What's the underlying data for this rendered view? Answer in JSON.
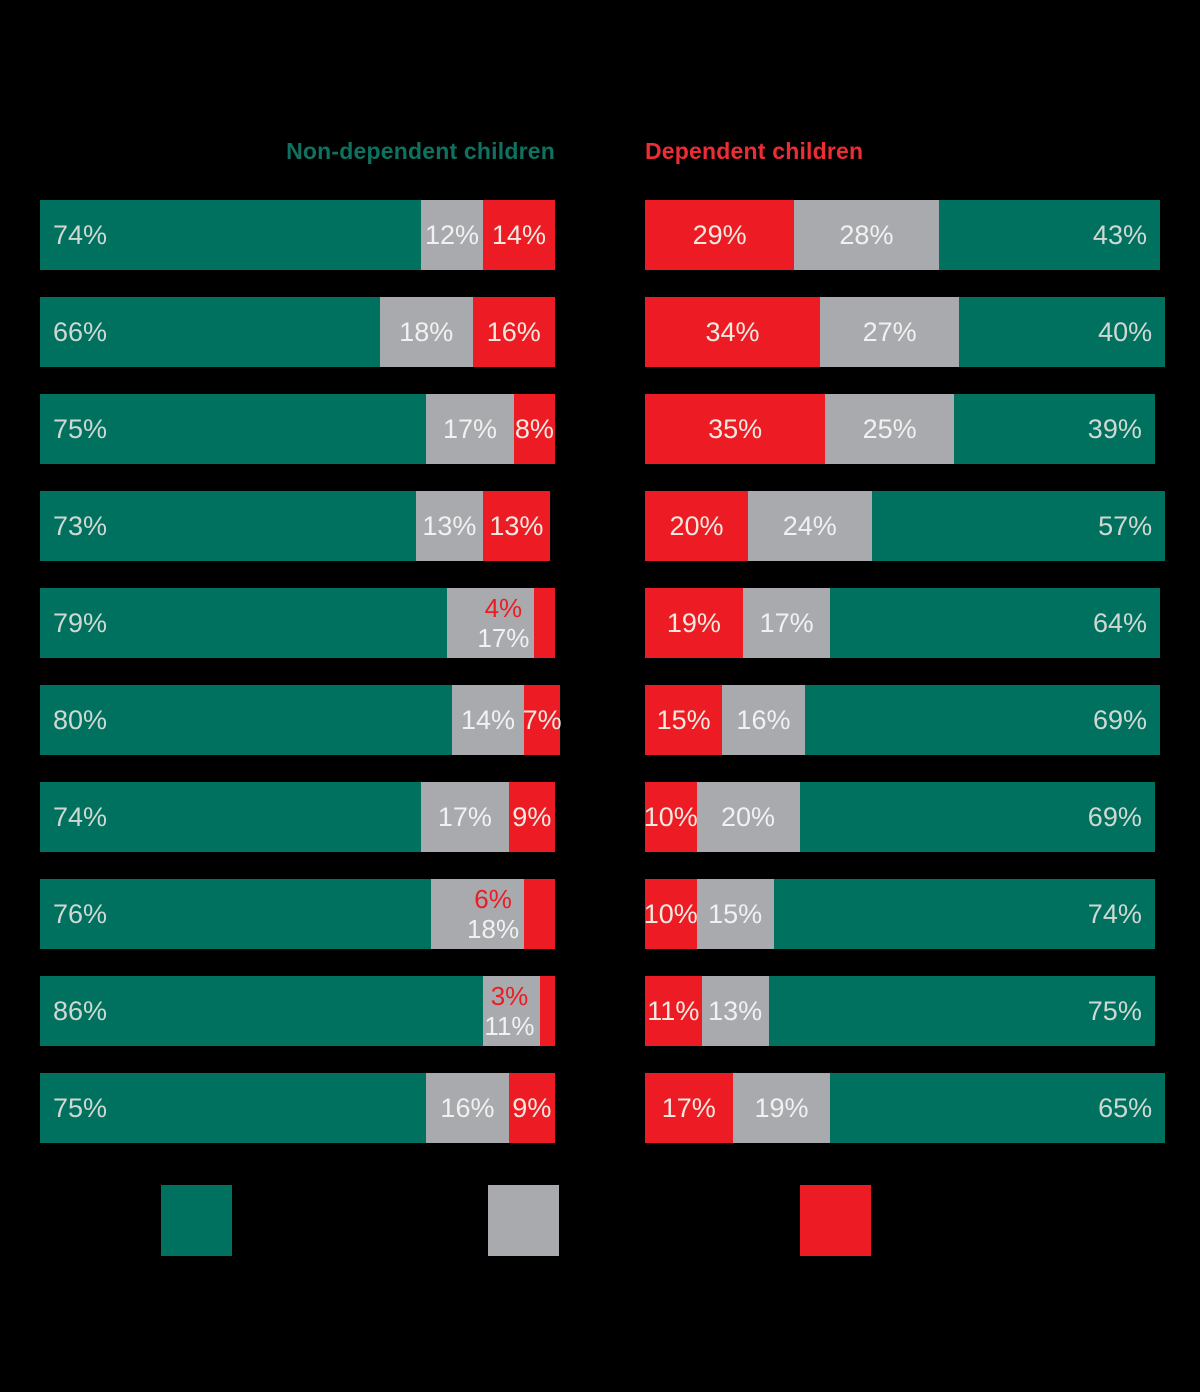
{
  "colors": {
    "background": "#000000",
    "green": "#00715e",
    "gray": "#a8aaad",
    "red": "#ed1c24",
    "header_green": "#0f7260",
    "header_red": "#ed2d35",
    "label_on_green": "#d0d8d3",
    "label_on_gray": "#f0f1f1",
    "label_on_red": "#f2e9e1"
  },
  "headers": {
    "left": "Non-dependent children",
    "right": "Dependent children"
  },
  "chart_data": {
    "type": "bar",
    "variant": "horizontal-stacked-percentage",
    "legend_position": "bottom",
    "legend_swatch_colors": [
      "#00715e",
      "#a8aaad",
      "#ed1c24"
    ],
    "groups": [
      {
        "title": "Non-dependent children",
        "segment_order": [
          "green",
          "gray",
          "red"
        ],
        "rows": [
          {
            "segments": [
              {
                "color": "green",
                "value": 74,
                "label": "74%",
                "align": "left"
              },
              {
                "color": "gray",
                "value": 12,
                "label": "12%",
                "align": "center"
              },
              {
                "color": "red",
                "value": 14,
                "label": "14%",
                "align": "center"
              }
            ]
          },
          {
            "segments": [
              {
                "color": "green",
                "value": 66,
                "label": "66%",
                "align": "left"
              },
              {
                "color": "gray",
                "value": 18,
                "label": "18%",
                "align": "center"
              },
              {
                "color": "red",
                "value": 16,
                "label": "16%",
                "align": "center"
              }
            ]
          },
          {
            "segments": [
              {
                "color": "green",
                "value": 75,
                "label": "75%",
                "align": "left"
              },
              {
                "color": "gray",
                "value": 17,
                "label": "17%",
                "align": "center"
              },
              {
                "color": "red",
                "value": 8,
                "label": "8%",
                "align": "center"
              }
            ]
          },
          {
            "segments": [
              {
                "color": "green",
                "value": 73,
                "label": "73%",
                "align": "left"
              },
              {
                "color": "gray",
                "value": 13,
                "label": "13%",
                "align": "center"
              },
              {
                "color": "red",
                "value": 13,
                "label": "13%",
                "align": "center"
              }
            ]
          },
          {
            "segments": [
              {
                "color": "green",
                "value": 79,
                "label": "79%",
                "align": "left"
              },
              {
                "color": "gray",
                "value": 17,
                "label": "",
                "align": "center",
                "stack": {
                  "top": "4%",
                  "bottom": "17%"
                }
              },
              {
                "color": "red",
                "value": 4,
                "label": "",
                "align": "center"
              }
            ]
          },
          {
            "segments": [
              {
                "color": "green",
                "value": 80,
                "label": "80%",
                "align": "left"
              },
              {
                "color": "gray",
                "value": 14,
                "label": "14%",
                "align": "center"
              },
              {
                "color": "red",
                "value": 7,
                "label": "7%",
                "align": "center"
              }
            ]
          },
          {
            "segments": [
              {
                "color": "green",
                "value": 74,
                "label": "74%",
                "align": "left"
              },
              {
                "color": "gray",
                "value": 17,
                "label": "17%",
                "align": "center"
              },
              {
                "color": "red",
                "value": 9,
                "label": "9%",
                "align": "center"
              }
            ]
          },
          {
            "segments": [
              {
                "color": "green",
                "value": 76,
                "label": "76%",
                "align": "left"
              },
              {
                "color": "gray",
                "value": 18,
                "label": "",
                "align": "center",
                "stack": {
                  "top": "6%",
                  "bottom": "18%"
                }
              },
              {
                "color": "red",
                "value": 6,
                "label": "",
                "align": "center"
              }
            ]
          },
          {
            "segments": [
              {
                "color": "green",
                "value": 86,
                "label": "86%",
                "align": "left"
              },
              {
                "color": "gray",
                "value": 11,
                "label": "",
                "align": "center",
                "stack": {
                  "top": "3%",
                  "bottom": "11%"
                }
              },
              {
                "color": "red",
                "value": 3,
                "label": "",
                "align": "center"
              }
            ]
          },
          {
            "segments": [
              {
                "color": "green",
                "value": 75,
                "label": "75%",
                "align": "left"
              },
              {
                "color": "gray",
                "value": 16,
                "label": "16%",
                "align": "center"
              },
              {
                "color": "red",
                "value": 9,
                "label": "9%",
                "align": "center"
              }
            ]
          }
        ]
      },
      {
        "title": "Dependent children",
        "segment_order": [
          "red",
          "gray",
          "green"
        ],
        "rows": [
          {
            "segments": [
              {
                "color": "red",
                "value": 29,
                "label": "29%",
                "align": "center"
              },
              {
                "color": "gray",
                "value": 28,
                "label": "28%",
                "align": "center"
              },
              {
                "color": "green",
                "value": 43,
                "label": "43%",
                "align": "right"
              }
            ]
          },
          {
            "segments": [
              {
                "color": "red",
                "value": 34,
                "label": "34%",
                "align": "center"
              },
              {
                "color": "gray",
                "value": 27,
                "label": "27%",
                "align": "center"
              },
              {
                "color": "green",
                "value": 40,
                "label": "40%",
                "align": "right"
              }
            ]
          },
          {
            "segments": [
              {
                "color": "red",
                "value": 35,
                "label": "35%",
                "align": "center"
              },
              {
                "color": "gray",
                "value": 25,
                "label": "25%",
                "align": "center"
              },
              {
                "color": "green",
                "value": 39,
                "label": "39%",
                "align": "right"
              }
            ]
          },
          {
            "segments": [
              {
                "color": "red",
                "value": 20,
                "label": "20%",
                "align": "center"
              },
              {
                "color": "gray",
                "value": 24,
                "label": "24%",
                "align": "center"
              },
              {
                "color": "green",
                "value": 57,
                "label": "57%",
                "align": "right"
              }
            ]
          },
          {
            "segments": [
              {
                "color": "red",
                "value": 19,
                "label": "19%",
                "align": "center"
              },
              {
                "color": "gray",
                "value": 17,
                "label": "17%",
                "align": "center"
              },
              {
                "color": "green",
                "value": 64,
                "label": "64%",
                "align": "right"
              }
            ]
          },
          {
            "segments": [
              {
                "color": "red",
                "value": 15,
                "label": "15%",
                "align": "center"
              },
              {
                "color": "gray",
                "value": 16,
                "label": "16%",
                "align": "center"
              },
              {
                "color": "green",
                "value": 69,
                "label": "69%",
                "align": "right"
              }
            ]
          },
          {
            "segments": [
              {
                "color": "red",
                "value": 10,
                "label": "10%",
                "align": "center"
              },
              {
                "color": "gray",
                "value": 20,
                "label": "20%",
                "align": "center"
              },
              {
                "color": "green",
                "value": 69,
                "label": "69%",
                "align": "right"
              }
            ]
          },
          {
            "segments": [
              {
                "color": "red",
                "value": 10,
                "label": "10%",
                "align": "center"
              },
              {
                "color": "gray",
                "value": 15,
                "label": "15%",
                "align": "center"
              },
              {
                "color": "green",
                "value": 74,
                "label": "74%",
                "align": "right"
              }
            ]
          },
          {
            "segments": [
              {
                "color": "red",
                "value": 11,
                "label": "11%",
                "align": "center"
              },
              {
                "color": "gray",
                "value": 13,
                "label": "13%",
                "align": "center"
              },
              {
                "color": "green",
                "value": 75,
                "label": "75%",
                "align": "right"
              }
            ]
          },
          {
            "segments": [
              {
                "color": "red",
                "value": 17,
                "label": "17%",
                "align": "center"
              },
              {
                "color": "gray",
                "value": 19,
                "label": "19%",
                "align": "center"
              },
              {
                "color": "green",
                "value": 65,
                "label": "65%",
                "align": "right"
              }
            ]
          }
        ]
      }
    ]
  }
}
